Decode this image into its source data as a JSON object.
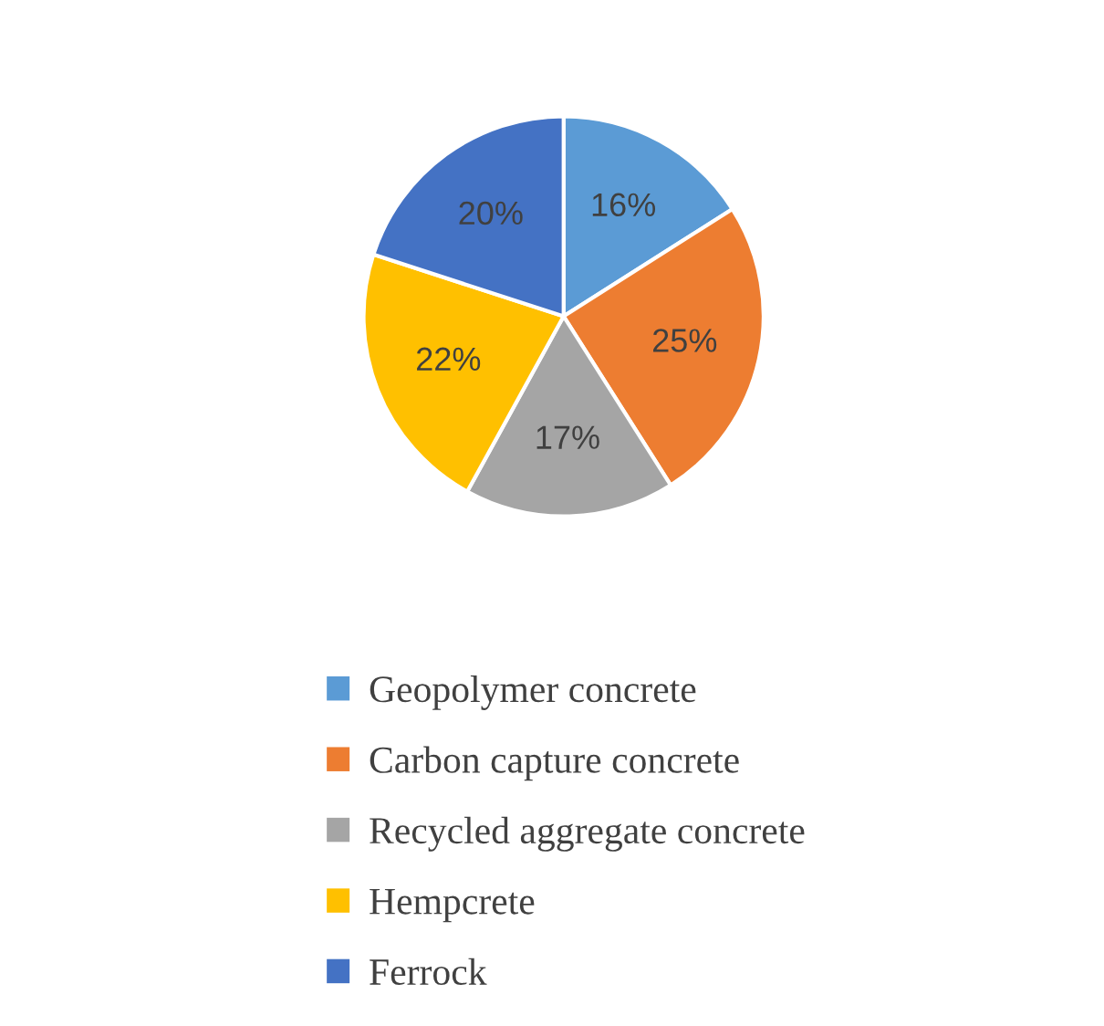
{
  "chart_data": {
    "type": "pie",
    "categories": [
      "Geopolymer concrete",
      "Carbon capture concrete",
      "Recycled aggregate concrete",
      "Hempcrete",
      "Ferrock"
    ],
    "values": [
      16,
      25,
      17,
      22,
      20
    ],
    "colors": [
      "#5b9bd5",
      "#ed7d31",
      "#a5a5a5",
      "#ffc000",
      "#4472c4"
    ],
    "value_labels": [
      "16%",
      "25%",
      "17%",
      "22%",
      "20%"
    ],
    "legend": "bottom"
  }
}
